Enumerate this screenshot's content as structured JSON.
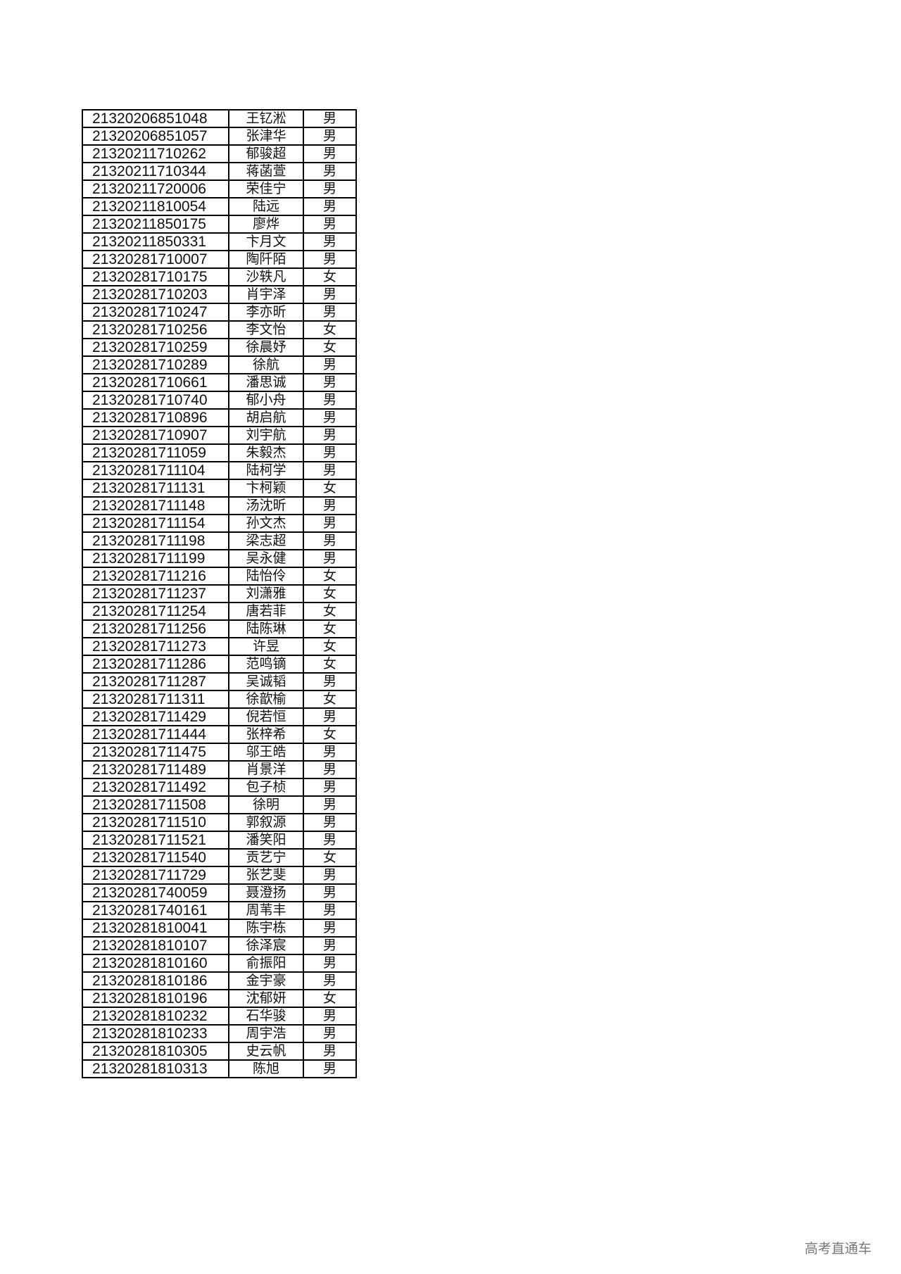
{
  "table": {
    "rows": [
      [
        "21320206851048",
        "王钇淞",
        "男"
      ],
      [
        "21320206851057",
        "张津华",
        "男"
      ],
      [
        "21320211710262",
        "郁骏超",
        "男"
      ],
      [
        "21320211710344",
        "蒋菡萱",
        "男"
      ],
      [
        "21320211720006",
        "荣佳宁",
        "男"
      ],
      [
        "21320211810054",
        "陆远",
        "男"
      ],
      [
        "21320211850175",
        "廖烨",
        "男"
      ],
      [
        "21320211850331",
        "卞月文",
        "男"
      ],
      [
        "21320281710007",
        "陶阡陌",
        "男"
      ],
      [
        "21320281710175",
        "沙轶凡",
        "女"
      ],
      [
        "21320281710203",
        "肖宇泽",
        "男"
      ],
      [
        "21320281710247",
        "李亦昕",
        "男"
      ],
      [
        "21320281710256",
        "李文怡",
        "女"
      ],
      [
        "21320281710259",
        "徐晨妤",
        "女"
      ],
      [
        "21320281710289",
        "徐航",
        "男"
      ],
      [
        "21320281710661",
        "潘思诚",
        "男"
      ],
      [
        "21320281710740",
        "郁小舟",
        "男"
      ],
      [
        "21320281710896",
        "胡启航",
        "男"
      ],
      [
        "21320281710907",
        "刘宇航",
        "男"
      ],
      [
        "21320281711059",
        "朱毅杰",
        "男"
      ],
      [
        "21320281711104",
        "陆柯学",
        "男"
      ],
      [
        "21320281711131",
        "卞柯颖",
        "女"
      ],
      [
        "21320281711148",
        "汤沈昕",
        "男"
      ],
      [
        "21320281711154",
        "孙文杰",
        "男"
      ],
      [
        "21320281711198",
        "梁志超",
        "男"
      ],
      [
        "21320281711199",
        "吴永健",
        "男"
      ],
      [
        "21320281711216",
        "陆怡伶",
        "女"
      ],
      [
        "21320281711237",
        "刘潇雅",
        "女"
      ],
      [
        "21320281711254",
        "唐若菲",
        "女"
      ],
      [
        "21320281711256",
        "陆陈琳",
        "女"
      ],
      [
        "21320281711273",
        "许昱",
        "女"
      ],
      [
        "21320281711286",
        "范鸣镝",
        "女"
      ],
      [
        "21320281711287",
        "吴诚韬",
        "男"
      ],
      [
        "21320281711311",
        "徐歆榆",
        "女"
      ],
      [
        "21320281711429",
        "倪若恒",
        "男"
      ],
      [
        "21320281711444",
        "张梓希",
        "女"
      ],
      [
        "21320281711475",
        "邬王皓",
        "男"
      ],
      [
        "21320281711489",
        "肖景洋",
        "男"
      ],
      [
        "21320281711492",
        "包子桢",
        "男"
      ],
      [
        "21320281711508",
        "徐明",
        "男"
      ],
      [
        "21320281711510",
        "郭叙源",
        "男"
      ],
      [
        "21320281711521",
        "潘笑阳",
        "男"
      ],
      [
        "21320281711540",
        "贡艺宁",
        "女"
      ],
      [
        "21320281711729",
        "张艺斐",
        "男"
      ],
      [
        "21320281740059",
        "聂澄扬",
        "男"
      ],
      [
        "21320281740161",
        "周苇丰",
        "男"
      ],
      [
        "21320281810041",
        "陈宇栋",
        "男"
      ],
      [
        "21320281810107",
        "徐泽宸",
        "男"
      ],
      [
        "21320281810160",
        "俞振阳",
        "男"
      ],
      [
        "21320281810186",
        "金宇豪",
        "男"
      ],
      [
        "21320281810196",
        "沈郁妍",
        "女"
      ],
      [
        "21320281810232",
        "石华骏",
        "男"
      ],
      [
        "21320281810233",
        "周宇浩",
        "男"
      ],
      [
        "21320281810305",
        "史云帆",
        "男"
      ],
      [
        "21320281810313",
        "陈旭",
        "男"
      ]
    ]
  },
  "watermark": "高考直通车"
}
